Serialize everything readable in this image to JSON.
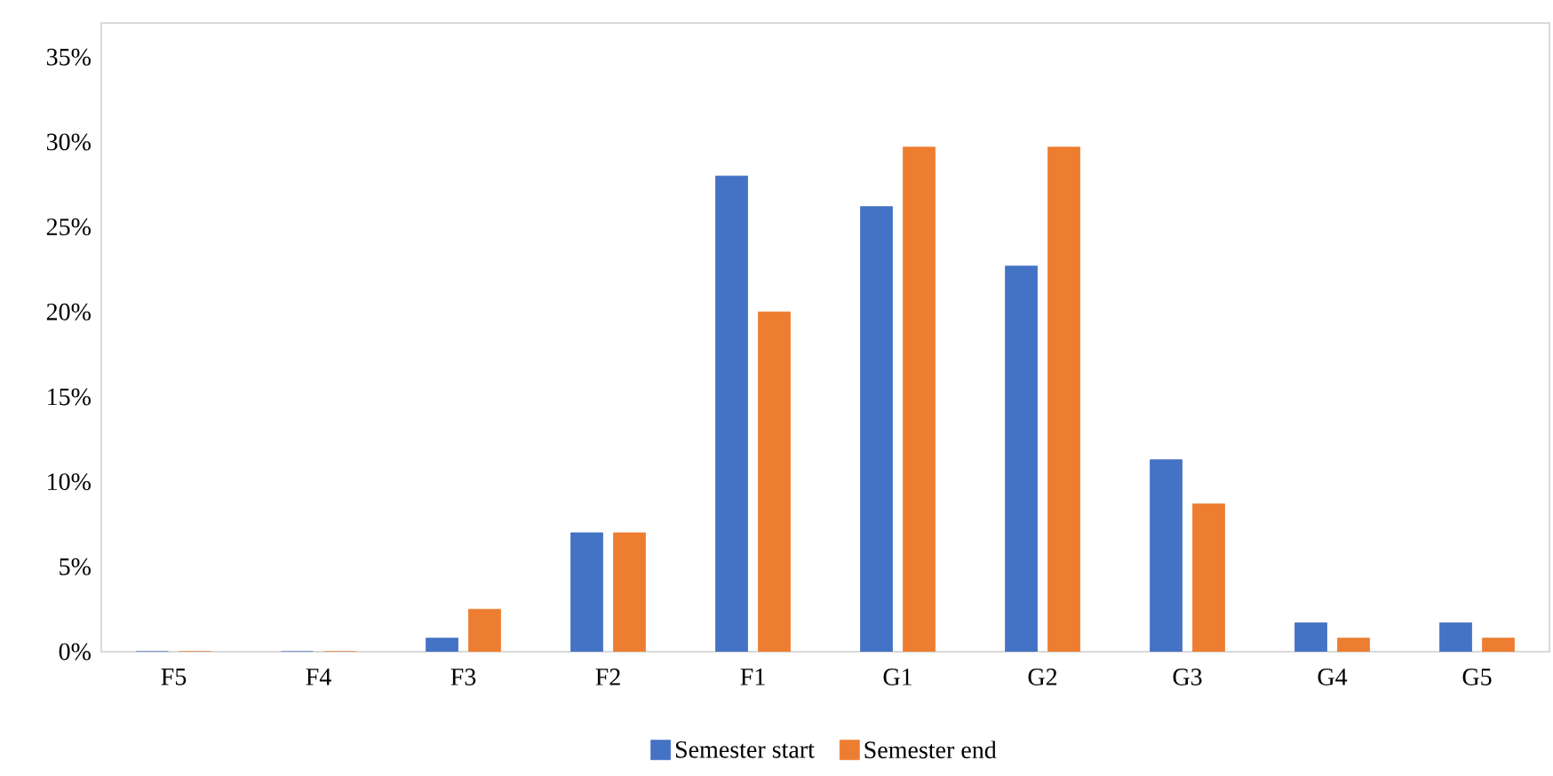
{
  "chart_data": {
    "type": "bar",
    "categories": [
      "F5",
      "F4",
      "F3",
      "F2",
      "F1",
      "G1",
      "G2",
      "G3",
      "G4",
      "G5"
    ],
    "series": [
      {
        "name": "Semester start",
        "color": "#4472c4",
        "values": [
          0,
          0,
          0.8,
          7.0,
          28.0,
          26.2,
          22.7,
          11.3,
          1.7,
          1.7
        ]
      },
      {
        "name": "Semester end",
        "color": "#ed7d31",
        "values": [
          0,
          0,
          2.5,
          7.0,
          20.0,
          29.7,
          29.7,
          8.7,
          0.8,
          0.8
        ]
      }
    ],
    "ylim": [
      0,
      37
    ],
    "yticks": [
      {
        "value": 0,
        "label": "0%"
      },
      {
        "value": 5,
        "label": "5%"
      },
      {
        "value": 10,
        "label": "10%"
      },
      {
        "value": 15,
        "label": "15%"
      },
      {
        "value": 20,
        "label": "20%"
      },
      {
        "value": 25,
        "label": "25%"
      },
      {
        "value": 30,
        "label": "30%"
      },
      {
        "value": 35,
        "label": "35%"
      }
    ],
    "legend": "bottom"
  }
}
